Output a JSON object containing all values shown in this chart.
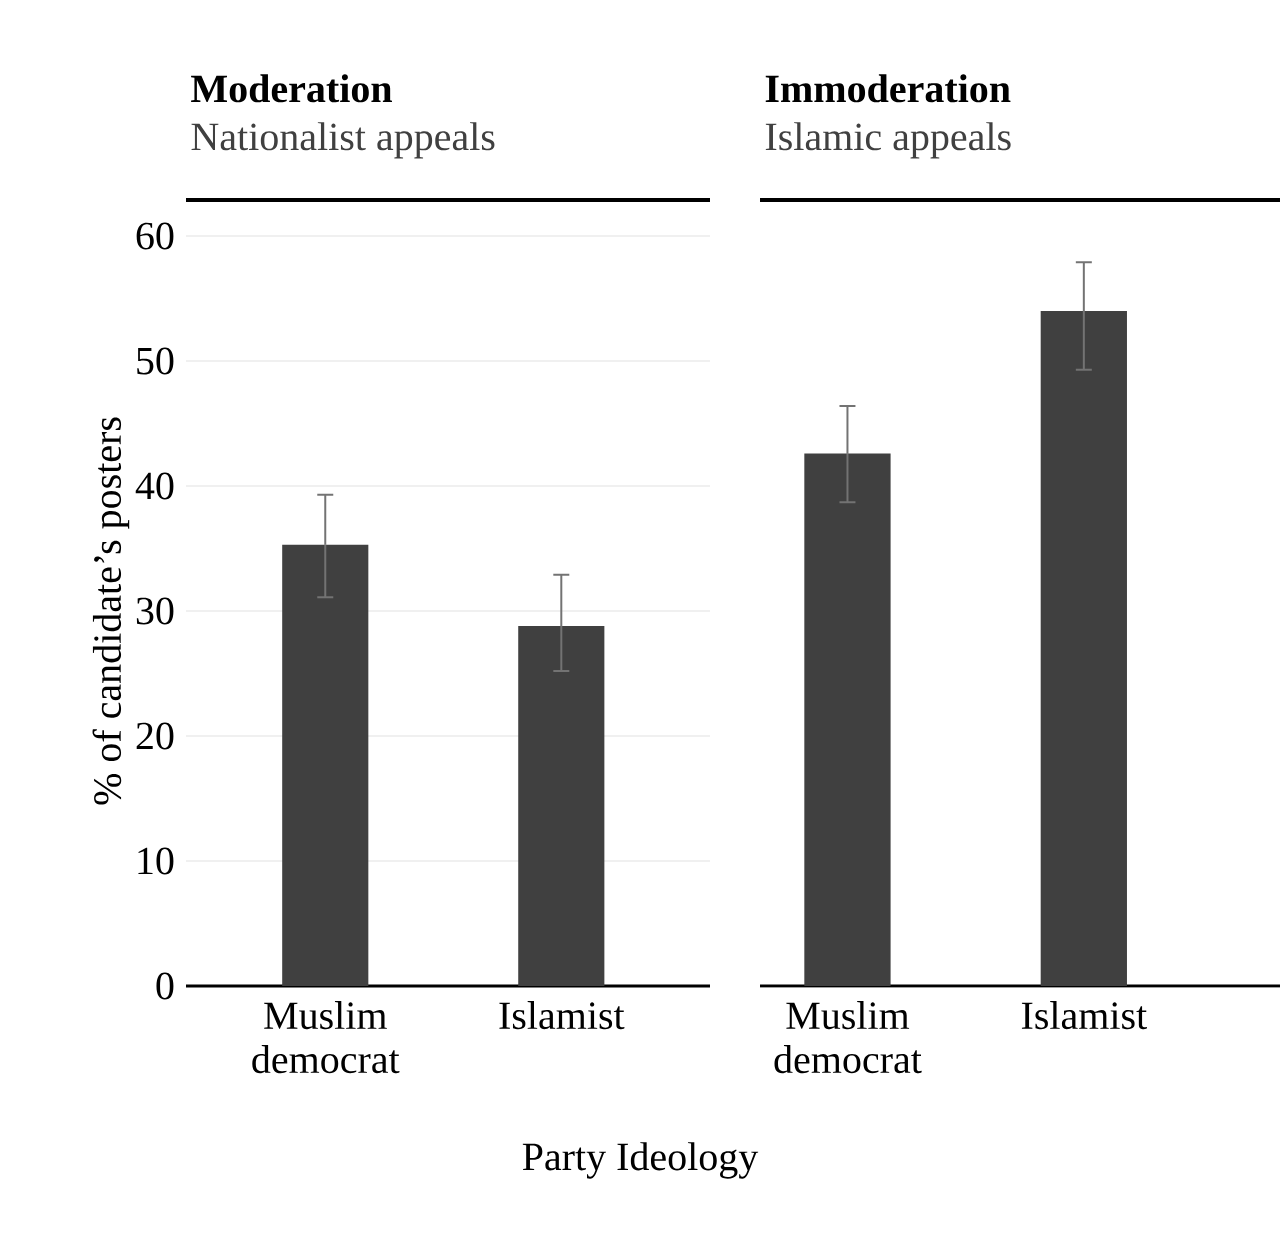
{
  "chart_data": [
    {
      "type": "bar",
      "title": "Moderation",
      "subtitle": "Nationalist appeals",
      "ylabel": "% of candidate’s posters",
      "xlabel": "Party Ideology",
      "categories": [
        "Muslim democrat",
        "Islamist"
      ],
      "values": [
        35.3,
        28.8
      ],
      "errors": [
        [
          31.1,
          39.3
        ],
        [
          25.2,
          32.9
        ]
      ],
      "color": "#404040",
      "ylim": [
        0,
        60
      ],
      "yticks": [
        0,
        10,
        20,
        30,
        40,
        50,
        60
      ],
      "grid": "y"
    },
    {
      "type": "bar",
      "title": "Immoderation",
      "subtitle": "Islamic appeals",
      "categories": [
        "Muslim democrat",
        "Islamist"
      ],
      "values": [
        42.6,
        54.0
      ],
      "errors": [
        [
          38.7,
          46.4
        ],
        [
          49.3,
          57.9
        ]
      ],
      "color": "#404040",
      "ylim": [
        0,
        60
      ],
      "yticks": [
        0,
        10,
        20,
        30,
        40,
        50,
        60
      ],
      "grid": "y",
      "tick_labels": "x"
    }
  ]
}
